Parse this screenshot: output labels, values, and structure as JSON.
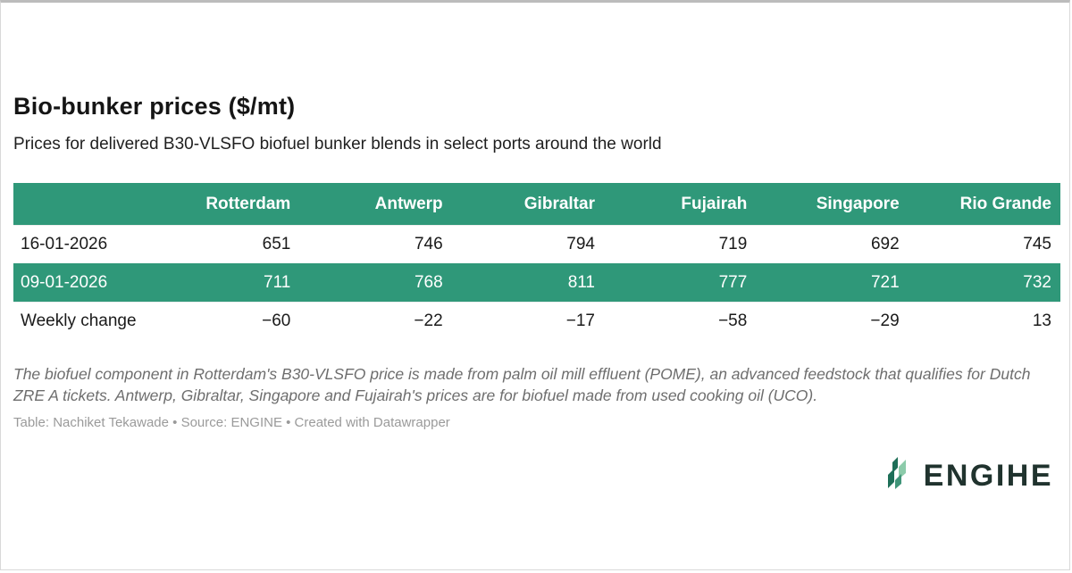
{
  "header": {
    "title": "Bio-bunker prices ($/mt)",
    "subtitle": "Prices for delivered B30-VLSFO biofuel bunker blends in select ports around the world"
  },
  "chart_data": {
    "type": "table",
    "title": "Bio-bunker prices ($/mt)",
    "subtitle": "Prices for delivered B30-VLSFO biofuel bunker blends in select ports around the world",
    "categories": [
      "Rotterdam",
      "Antwerp",
      "Gibraltar",
      "Fujairah",
      "Singapore",
      "Rio Grande"
    ],
    "series": [
      {
        "name": "16-01-2026",
        "values": [
          651,
          746,
          794,
          719,
          692,
          745
        ]
      },
      {
        "name": "09-01-2026",
        "values": [
          711,
          768,
          811,
          777,
          721,
          732
        ]
      },
      {
        "name": "Weekly change",
        "values": [
          -60,
          -22,
          -17,
          -58,
          -29,
          13
        ]
      }
    ]
  },
  "table": {
    "columns": [
      "",
      "Rotterdam",
      "Antwerp",
      "Gibraltar",
      "Fujairah",
      "Singapore",
      "Rio Grande"
    ],
    "rows": [
      {
        "label": "16-01-2026",
        "values": [
          "651",
          "746",
          "794",
          "719",
          "692",
          "745"
        ],
        "highlight": false
      },
      {
        "label": "09-01-2026",
        "values": [
          "711",
          "768",
          "811",
          "777",
          "721",
          "732"
        ],
        "highlight": true
      },
      {
        "label": "Weekly change",
        "values": [
          "−60",
          "−22",
          "−17",
          "−58",
          "−29",
          "13"
        ],
        "highlight": false
      }
    ]
  },
  "footnote": "The biofuel component in Rotterdam's B30-VLSFO price is made from palm oil mill effluent (POME), an advanced feedstock that qualifies for Dutch ZRE A tickets. Antwerp, Gibraltar, Singapore and Fujairah's prices are for biofuel made from used cooking oil (UCO).",
  "credits": "Table: Nachiket Tekawade • Source: ENGINE • Created with Datawrapper",
  "logo": {
    "wordmark": "ENGIНE",
    "icon": "engine-leaf-icon"
  },
  "colors": {
    "accent_green": "#2f9879",
    "logo_dark": "#20332e",
    "logo_green_dark": "#1e6f58",
    "logo_green_light": "#8ccbaa"
  }
}
